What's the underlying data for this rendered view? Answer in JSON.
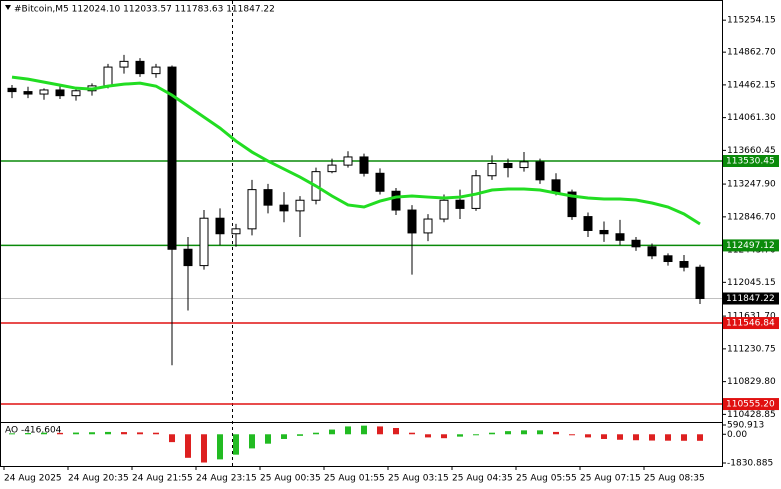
{
  "chart_data": {
    "type": "candlestick",
    "title": "#Bitcoin,M5  112024.10 112033.57 111783.63 111847.22",
    "categories": [
      "24 Aug 2025",
      null,
      null,
      null,
      "24 Aug 20:35",
      null,
      null,
      null,
      "24 Aug 21:55",
      null,
      null,
      null,
      "24 Aug 23:15",
      null,
      null,
      null,
      "25 Aug 00:35",
      null,
      null,
      null,
      "25 Aug 01:55",
      null,
      null,
      null,
      "25 Aug 03:15",
      null,
      null,
      null,
      "25 Aug 04:35",
      null,
      null,
      null,
      "25 Aug 05:55",
      null,
      null,
      null,
      "25 Aug 07:15",
      null,
      null,
      null,
      "25 Aug 08:35",
      null,
      null,
      null
    ],
    "ohlc": [
      [
        114420,
        114460,
        114300,
        114380
      ],
      [
        114380,
        114440,
        114300,
        114350
      ],
      [
        114350,
        114420,
        114280,
        114400
      ],
      [
        114400,
        114460,
        114290,
        114330
      ],
      [
        114330,
        114420,
        114270,
        114390
      ],
      [
        114390,
        114480,
        114330,
        114450
      ],
      [
        114450,
        114720,
        114420,
        114680
      ],
      [
        114680,
        114830,
        114600,
        114750
      ],
      [
        114750,
        114790,
        114560,
        114600
      ],
      [
        114600,
        114720,
        114550,
        114680
      ],
      [
        114680,
        114700,
        111030,
        112450
      ],
      [
        112450,
        112600,
        111700,
        112250
      ],
      [
        112250,
        112930,
        112200,
        112830
      ],
      [
        112830,
        112950,
        112500,
        112640
      ],
      [
        112640,
        112760,
        112480,
        112700
      ],
      [
        112700,
        113300,
        112620,
        113180
      ],
      [
        113180,
        113250,
        112890,
        112990
      ],
      [
        112990,
        113150,
        112780,
        112920
      ],
      [
        112920,
        113100,
        112600,
        113050
      ],
      [
        113050,
        113450,
        113000,
        113400
      ],
      [
        113400,
        113560,
        113380,
        113480
      ],
      [
        113480,
        113650,
        113450,
        113580
      ],
      [
        113580,
        113620,
        113340,
        113380
      ],
      [
        113380,
        113440,
        113120,
        113160
      ],
      [
        113160,
        113200,
        112870,
        112930
      ],
      [
        112930,
        112990,
        112140,
        112650
      ],
      [
        112650,
        112880,
        112550,
        112820
      ],
      [
        112820,
        113120,
        112780,
        113050
      ],
      [
        113050,
        113180,
        112820,
        112950
      ],
      [
        112950,
        113420,
        112920,
        113350
      ],
      [
        113350,
        113600,
        113300,
        113500
      ],
      [
        113500,
        113560,
        113330,
        113450
      ],
      [
        113450,
        113640,
        113400,
        113520
      ],
      [
        113520,
        113560,
        113250,
        113300
      ],
      [
        113300,
        113380,
        113110,
        113150
      ],
      [
        113150,
        113180,
        112810,
        112850
      ],
      [
        112850,
        112900,
        112600,
        112680
      ],
      [
        112680,
        112790,
        112540,
        112640
      ],
      [
        112640,
        112810,
        112500,
        112560
      ],
      [
        112560,
        112600,
        112430,
        112480
      ],
      [
        112480,
        112520,
        112330,
        112370
      ],
      [
        112370,
        112400,
        112250,
        112300
      ],
      [
        112300,
        112380,
        112180,
        112230
      ],
      [
        112230,
        112260,
        111780,
        111847.22
      ]
    ],
    "moving_average": {
      "color": "#22dd22",
      "values": [
        114557,
        114533,
        114496,
        114459,
        114422,
        114410,
        114447,
        114471,
        114484,
        114447,
        114337,
        114202,
        114068,
        113933,
        113774,
        113640,
        113530,
        113432,
        113334,
        113224,
        113102,
        112992,
        112967,
        113040,
        113089,
        113102,
        113089,
        113077,
        113089,
        113126,
        113175,
        113187,
        113187,
        113175,
        113138,
        113102,
        113077,
        113065,
        113065,
        113053,
        113016,
        112967,
        112882,
        112759
      ]
    },
    "ylim": [
      110360,
      115440
    ],
    "yticks": [
      {
        "value": 115254.15,
        "label": "115254.15"
      },
      {
        "value": 114862.7,
        "label": "114862.70"
      },
      {
        "value": 114462.15,
        "label": "114462.15"
      },
      {
        "value": 114061.3,
        "label": "114061.30"
      },
      {
        "value": 113660.45,
        "label": "113660.45"
      },
      {
        "value": 113247.9,
        "label": "113247.90"
      },
      {
        "value": 112846.7,
        "label": "112846.70"
      },
      {
        "value": 112443.7,
        "label": "112443.70"
      },
      {
        "value": 112045.15,
        "label": "112045.15"
      },
      {
        "value": 111631.7,
        "label": "111631.70"
      },
      {
        "value": 111230.75,
        "label": "111230.75"
      },
      {
        "value": 110829.8,
        "label": "110829.80"
      },
      {
        "value": 110428.85,
        "label": "110428.85"
      }
    ],
    "levels": [
      {
        "value": 113530.45,
        "label": "113530.45",
        "color": "#0a8a0a"
      },
      {
        "value": 112497.12,
        "label": "112497.12",
        "color": "#0a8a0a"
      },
      {
        "value": 111546.84,
        "label": "111546.84",
        "color": "#e01010"
      },
      {
        "value": 110555.2,
        "label": "110555.20",
        "color": "#e01010"
      }
    ],
    "last_price": {
      "value": 111847.22,
      "label": "111847.22",
      "color": "#c0c0c0"
    },
    "ao": {
      "label": "AO -416.604",
      "up_color": "#22bb22",
      "down_color": "#dd2020",
      "values": [
        60,
        80,
        100,
        90,
        110,
        130,
        150,
        140,
        120,
        100,
        -500,
        -1500,
        -1800,
        -1600,
        -1300,
        -900,
        -600,
        -300,
        -100,
        100,
        300,
        500,
        550,
        500,
        400,
        100,
        -200,
        -250,
        -150,
        -50,
        100,
        200,
        250,
        250,
        150,
        -50,
        -200,
        -300,
        -350,
        -380,
        -400,
        -410,
        -415,
        -416.604
      ],
      "ylim": [
        -1830.885,
        590.913
      ],
      "yticks": [
        {
          "value": 590.913,
          "label": "590.913"
        },
        {
          "value": 0,
          "label": "0.00"
        },
        {
          "value": -1830.885,
          "label": "-1830.885"
        }
      ]
    }
  }
}
